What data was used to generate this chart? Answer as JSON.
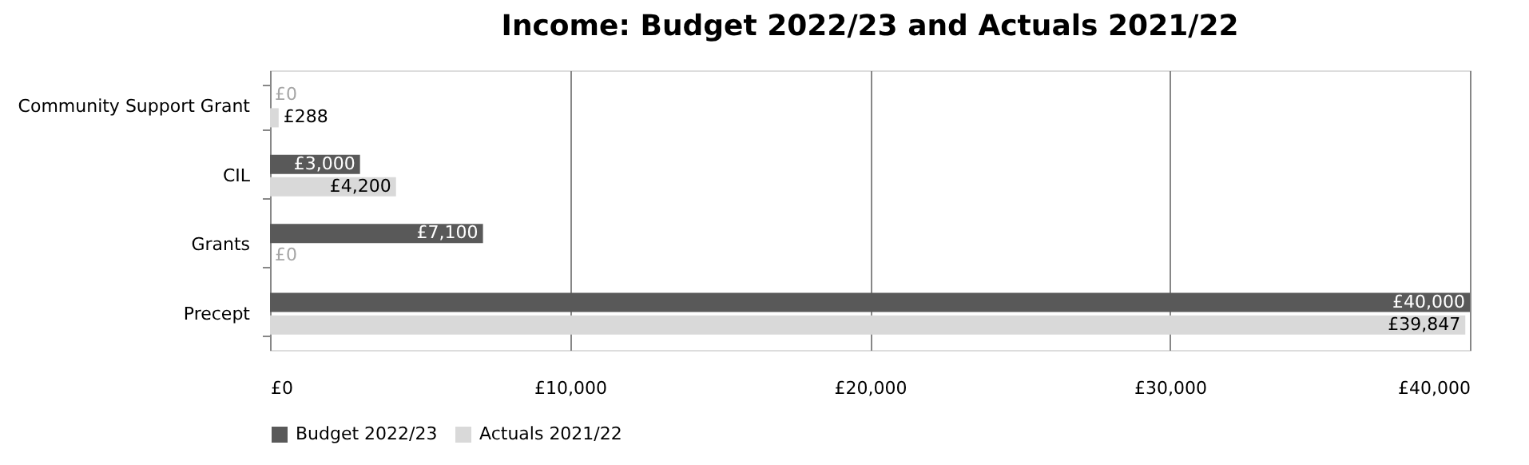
{
  "chart_data": {
    "type": "bar",
    "orientation": "horizontal",
    "title": "Income: Budget 2022/23 and Actuals 2021/22",
    "categories": [
      "Community Support Grant",
      "CIL",
      "Grants",
      "Precept"
    ],
    "series": [
      {
        "name": "Budget 2022/23",
        "color": "#595959",
        "values": [
          0,
          3000,
          7100,
          40000
        ],
        "value_labels": [
          "£0",
          "£3,000",
          "£7,100",
          "£40,000"
        ]
      },
      {
        "name": "Actuals 2021/22",
        "color": "#d9d9d9",
        "values": [
          288,
          4200,
          0,
          39847
        ],
        "value_labels": [
          "£288",
          "£4,200",
          "£0",
          "£39,847"
        ]
      }
    ],
    "xlim": [
      0,
      40000
    ],
    "xticks": [
      {
        "value": 0,
        "label": "£0"
      },
      {
        "value": 10000,
        "label": "£10,000"
      },
      {
        "value": 20000,
        "label": "£20,000"
      },
      {
        "value": 30000,
        "label": "£30,000"
      },
      {
        "value": 40000,
        "label": "£40,000"
      }
    ],
    "grid": "x",
    "legend": "bottom"
  }
}
